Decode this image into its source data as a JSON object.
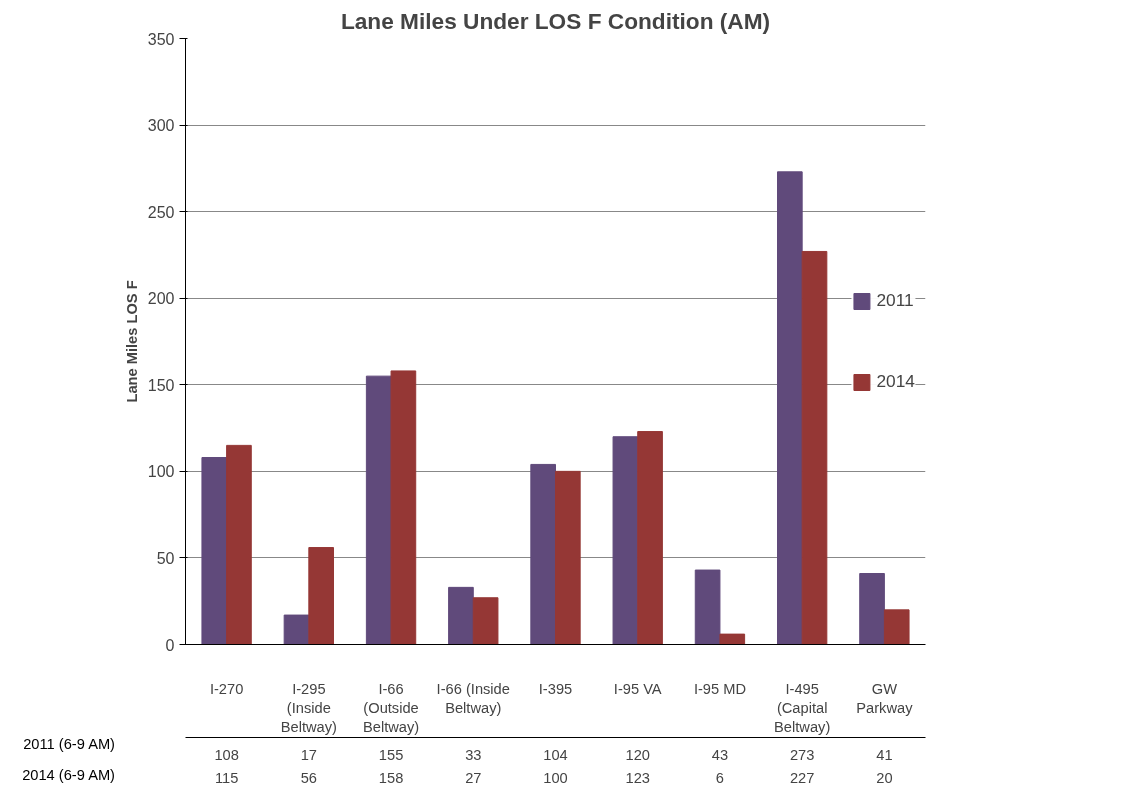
{
  "chart_data": {
    "type": "bar",
    "title": "Lane Miles Under LOS F Condition (AM)",
    "ylabel": "Lane Miles LOS F",
    "categories": [
      "I-270",
      "I-295\n(Inside\nBeltway)",
      "I-66\n(Outside\nBeltway)",
      "I-66 (Inside\nBeltway)",
      "I-395",
      "I-95 VA",
      "I-95 MD",
      "I-495\n(Capital\nBeltway)",
      "GW\nParkway"
    ],
    "series": [
      {
        "name": "2011",
        "color": "#604a7b",
        "values": [
          108,
          17,
          155,
          33,
          104,
          120,
          43,
          273,
          41
        ]
      },
      {
        "name": "2014",
        "color": "#953735",
        "values": [
          115,
          56,
          158,
          27,
          100,
          123,
          6,
          227,
          20
        ]
      }
    ],
    "annotations": [
      "2011 (6-9 AM)",
      "2014 (6-9 AM)"
    ],
    "ylim": [
      0,
      350
    ],
    "yticks": [
      0,
      50,
      100,
      150,
      200,
      250,
      300,
      350
    ],
    "grid": "y",
    "legend": "right",
    "data_labels": true
  }
}
